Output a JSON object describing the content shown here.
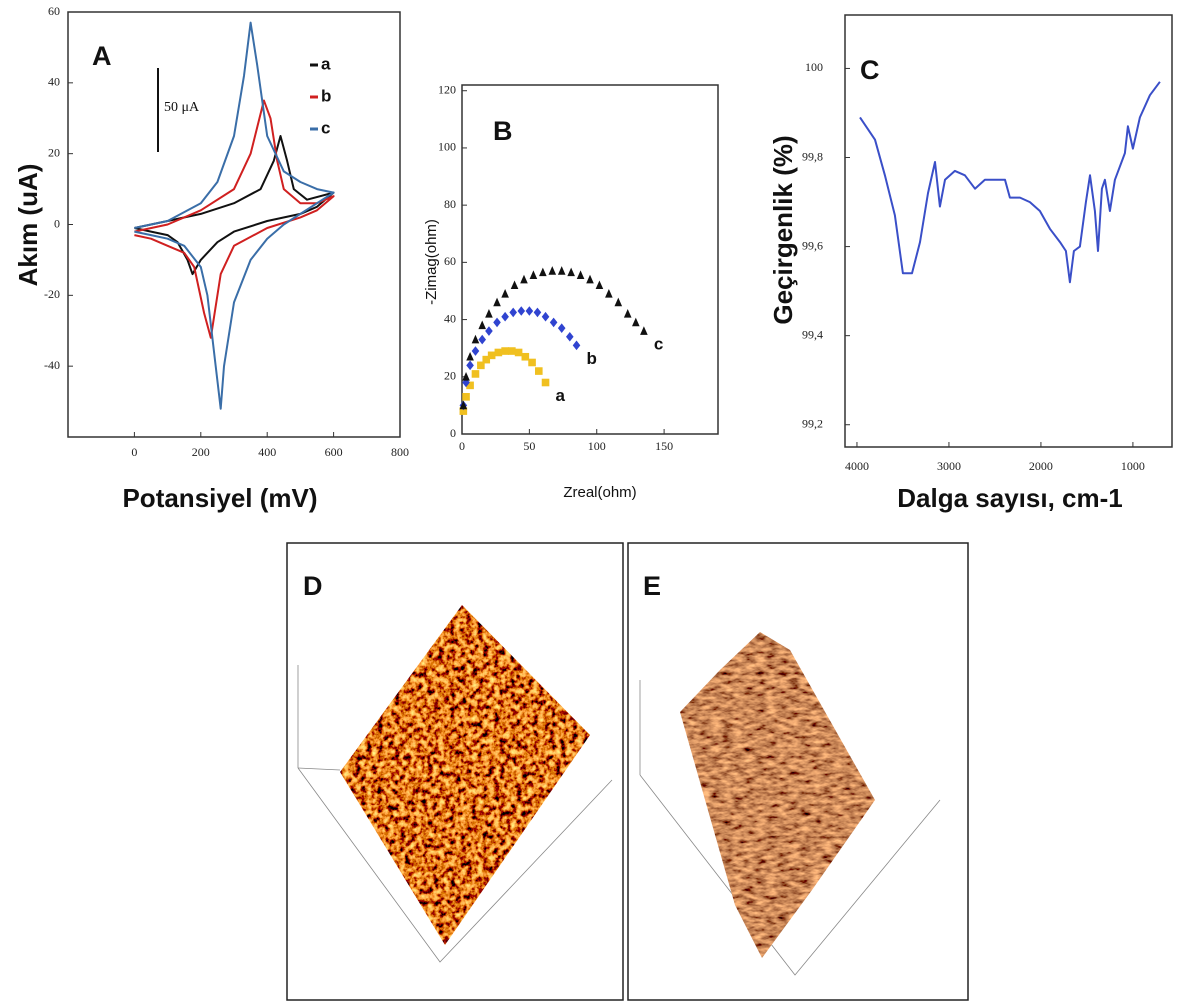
{
  "chart_data": [
    {
      "type": "line",
      "title": "A",
      "xlabel": "Potansiyel (mV)",
      "ylabel": "Akım (uA)",
      "annotation": "50 μA",
      "xlim": [
        -200,
        800
      ],
      "xticks": [
        0,
        200,
        400,
        600,
        800
      ],
      "ylim": [
        -60,
        60
      ],
      "yticks": [
        -40,
        -20,
        0,
        20,
        40,
        60
      ],
      "series": [
        {
          "name": "a",
          "color": "#111111",
          "x": [
            0,
            100,
            200,
            300,
            380,
            420,
            440,
            460,
            480,
            520,
            600,
            550,
            500,
            400,
            300,
            250,
            200,
            175,
            160,
            130,
            100,
            50,
            0
          ],
          "values": [
            -1,
            1,
            3,
            6,
            10,
            18,
            25,
            18,
            10,
            7,
            9,
            5,
            3,
            1,
            -2,
            -5,
            -10,
            -14,
            -10,
            -5,
            -3,
            -2,
            -1
          ]
        },
        {
          "name": "b",
          "color": "#d02020",
          "x": [
            0,
            100,
            200,
            300,
            350,
            390,
            410,
            430,
            450,
            500,
            550,
            600,
            550,
            500,
            400,
            300,
            260,
            230,
            210,
            180,
            150,
            100,
            50,
            0
          ],
          "values": [
            -2,
            0,
            4,
            10,
            20,
            35,
            30,
            18,
            10,
            6,
            6,
            8,
            4,
            2,
            -1,
            -6,
            -14,
            -32,
            -25,
            -12,
            -8,
            -6,
            -4,
            -3
          ]
        },
        {
          "name": "c",
          "color": "#3a6ea8",
          "x": [
            0,
            100,
            200,
            250,
            300,
            330,
            350,
            370,
            400,
            450,
            500,
            550,
            600,
            550,
            500,
            450,
            400,
            350,
            300,
            270,
            260,
            245,
            220,
            200,
            150,
            100,
            50,
            0
          ],
          "values": [
            -1,
            1,
            6,
            12,
            25,
            42,
            57,
            45,
            25,
            15,
            12,
            10,
            9,
            6,
            3,
            0,
            -4,
            -10,
            -22,
            -40,
            -52,
            -40,
            -20,
            -12,
            -6,
            -4,
            -3,
            -2
          ]
        }
      ]
    },
    {
      "type": "scatter",
      "title": "B",
      "xlabel": "Zreal(ohm)",
      "ylabel": "-Zimag(ohm)",
      "xlim": [
        0,
        190
      ],
      "xticks": [
        0,
        50,
        100,
        150
      ],
      "ylim": [
        0,
        122
      ],
      "yticks": [
        0,
        20,
        40,
        60,
        80,
        100,
        120
      ],
      "series": [
        {
          "name": "a",
          "color": "#f0c020",
          "marker": "square",
          "x": [
            1,
            3,
            6,
            10,
            14,
            18,
            22,
            27,
            32,
            37,
            42,
            47,
            52,
            57,
            62
          ],
          "values": [
            8,
            13,
            17,
            21,
            24,
            26,
            27.5,
            28.5,
            29,
            29,
            28.5,
            27,
            25,
            22,
            18
          ]
        },
        {
          "name": "b",
          "color": "#3044d0",
          "marker": "diamond",
          "x": [
            1,
            3,
            6,
            10,
            15,
            20,
            26,
            32,
            38,
            44,
            50,
            56,
            62,
            68,
            74,
            80,
            85
          ],
          "values": [
            10,
            18,
            24,
            29,
            33,
            36,
            39,
            41,
            42.5,
            43,
            43,
            42.5,
            41,
            39,
            37,
            34,
            31
          ]
        },
        {
          "name": "c",
          "color": "#111111",
          "marker": "triangle",
          "x": [
            1,
            3,
            6,
            10,
            15,
            20,
            26,
            32,
            39,
            46,
            53,
            60,
            67,
            74,
            81,
            88,
            95,
            102,
            109,
            116,
            123,
            129,
            135
          ],
          "values": [
            10,
            20,
            27,
            33,
            38,
            42,
            46,
            49,
            52,
            54,
            55.5,
            56.5,
            57,
            57,
            56.5,
            55.5,
            54,
            52,
            49,
            46,
            42,
            39,
            36
          ]
        }
      ]
    },
    {
      "type": "line",
      "title": "C",
      "xlabel": "Dalga sayısı, cm-1",
      "ylabel": "Geçirgenlik (%)",
      "xlim": [
        4130,
        575
      ],
      "xticks": [
        4000,
        3000,
        2000,
        1000
      ],
      "ylim": [
        99.15,
        100.12
      ],
      "yticks": [
        {
          "value": 99.2,
          "label": "99,2"
        },
        {
          "value": 99.4,
          "label": "99,4"
        },
        {
          "value": 99.6,
          "label": "99,6"
        },
        {
          "value": 99.8,
          "label": "99,8"
        },
        100
      ],
      "x": [
        3967,
        3804,
        3696,
        3587,
        3500,
        3402,
        3315,
        3228,
        3152,
        3098,
        3043,
        2935,
        2826,
        2717,
        2609,
        2500,
        2391,
        2337,
        2228,
        2120,
        2011,
        1902,
        1793,
        1728,
        1685,
        1641,
        1576,
        1511,
        1467,
        1413,
        1380,
        1337,
        1304,
        1250,
        1196,
        1087,
        1054,
        1000,
        924,
        815,
        707
      ],
      "series": [
        {
          "color": "#3a4fc8",
          "values": [
            99.89,
            99.84,
            99.76,
            99.67,
            99.54,
            99.54,
            99.61,
            99.72,
            99.79,
            99.69,
            99.75,
            99.77,
            99.76,
            99.73,
            99.75,
            99.75,
            99.75,
            99.71,
            99.71,
            99.7,
            99.68,
            99.64,
            99.61,
            99.59,
            99.52,
            99.59,
            99.6,
            99.7,
            99.76,
            99.68,
            99.59,
            99.73,
            99.75,
            99.68,
            99.75,
            99.81,
            99.87,
            99.82,
            99.89,
            99.94,
            99.97
          ]
        }
      ]
    },
    {
      "type": "image",
      "title": "D"
    },
    {
      "type": "image",
      "title": "E"
    }
  ]
}
